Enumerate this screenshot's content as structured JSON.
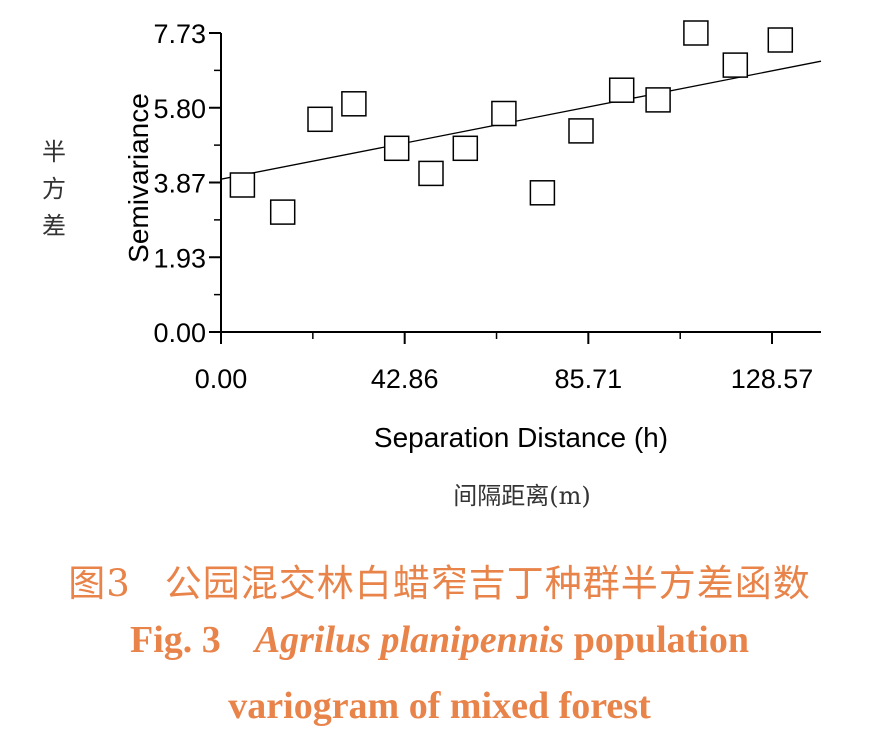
{
  "chart_data": {
    "type": "scatter",
    "xlabel": "Separation Distance (h)",
    "xlabel_cn": "间隔距离(m)",
    "ylabel": "Semivariance",
    "ylabel_cn": "半方差",
    "xlim": [
      0,
      140
    ],
    "ylim": [
      0,
      7.73
    ],
    "x_ticks": [
      "0.00",
      "42.86",
      "85.71",
      "128.57"
    ],
    "y_ticks": [
      "0.00",
      "1.93",
      "3.87",
      "5.80",
      "7.73"
    ],
    "grid": false,
    "legend": "none",
    "points": [
      {
        "x": 5,
        "y": 3.8
      },
      {
        "x": 14.4,
        "y": 3.1
      },
      {
        "x": 23.1,
        "y": 5.5
      },
      {
        "x": 31,
        "y": 5.9
      },
      {
        "x": 41,
        "y": 4.75
      },
      {
        "x": 49,
        "y": 4.1
      },
      {
        "x": 57,
        "y": 4.75
      },
      {
        "x": 66,
        "y": 5.65
      },
      {
        "x": 75,
        "y": 3.6
      },
      {
        "x": 84,
        "y": 5.2
      },
      {
        "x": 93.5,
        "y": 6.25
      },
      {
        "x": 102,
        "y": 6.0
      },
      {
        "x": 110.8,
        "y": 7.73
      },
      {
        "x": 120,
        "y": 6.9
      },
      {
        "x": 130.5,
        "y": 7.55
      }
    ],
    "model_line": {
      "x": [
        0,
        140
      ],
      "y": [
        3.95,
        7.0
      ]
    }
  },
  "caption": {
    "zh_fig": "图3",
    "zh_title": "公园混交林白蜡窄吉丁种群半方差函数",
    "en_fig": "Fig. 3",
    "en_species": "Agrilus planipennis",
    "en_rest1": "population",
    "en_rest2": "variogram of mixed forest"
  }
}
